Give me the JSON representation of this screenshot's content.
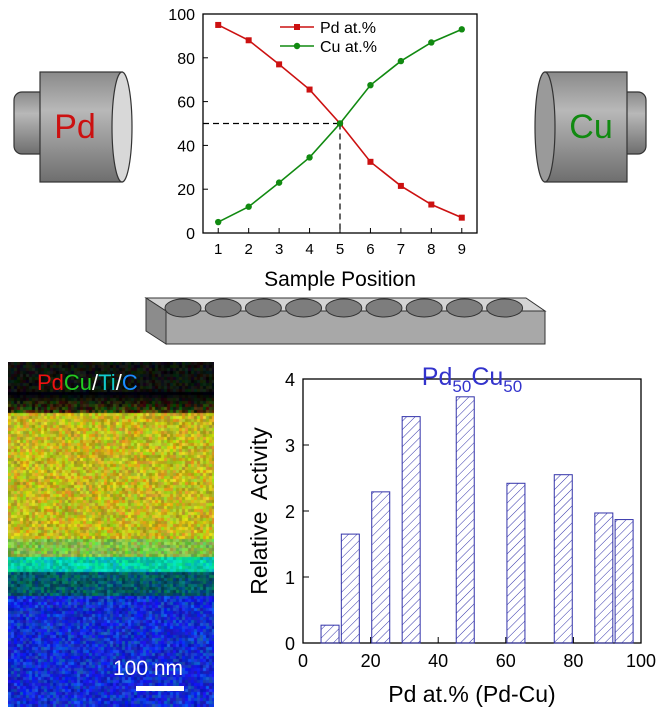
{
  "source_labels": {
    "left": "Pd",
    "right": "Cu"
  },
  "colors": {
    "pd": "#cc1111",
    "cu": "#118a11",
    "bar": "#3333aa",
    "ti": "#00c0c0",
    "c": "#0a55ff"
  },
  "chart_data": [
    {
      "type": "line",
      "x": [
        1,
        2,
        3,
        4,
        5,
        6,
        7,
        8,
        9
      ],
      "series": [
        {
          "name": "Pd at.%",
          "values": [
            95,
            88,
            77,
            65.5,
            50,
            32.5,
            21.5,
            13,
            7
          ]
        },
        {
          "name": "Cu at.%",
          "values": [
            5,
            12,
            23,
            34.5,
            50,
            67.5,
            78.5,
            87,
            93
          ]
        }
      ],
      "xlabel": "Sample Position",
      "ylabel": "",
      "xlim": [
        0.5,
        9.5
      ],
      "ylim": [
        0,
        100
      ],
      "xticks": [
        1,
        2,
        3,
        4,
        5,
        6,
        7,
        8,
        9
      ],
      "yticks": [
        0,
        20,
        40,
        60,
        80,
        100
      ],
      "annotation": {
        "x": 5,
        "y": 50,
        "style": "dashed guide lines"
      },
      "legend": "top-center",
      "grid": false
    },
    {
      "type": "bar",
      "x": [
        8,
        14,
        23,
        32,
        48,
        63,
        77,
        89,
        95
      ],
      "values": [
        0.27,
        1.65,
        2.29,
        3.43,
        3.73,
        2.42,
        2.55,
        1.97,
        1.87
      ],
      "title_parts": {
        "base1": "Pd",
        "sub1": "50",
        "base2": "Cu",
        "sub2": "50"
      },
      "xlabel": "Pd at.% (Pd-Cu)",
      "ylabel": "Relative  Activity",
      "xlim": [
        0,
        100
      ],
      "ylim": [
        0,
        4
      ],
      "xticks": [
        0,
        20,
        40,
        60,
        80,
        100
      ],
      "yticks": [
        0,
        1,
        2,
        3,
        4
      ],
      "pattern": "diagonal hatch",
      "grid": false
    }
  ],
  "eds_map": {
    "label_parts": [
      "Pd",
      "Cu",
      "/",
      "Ti",
      "/",
      "C"
    ],
    "scale_label": "100 nm"
  }
}
